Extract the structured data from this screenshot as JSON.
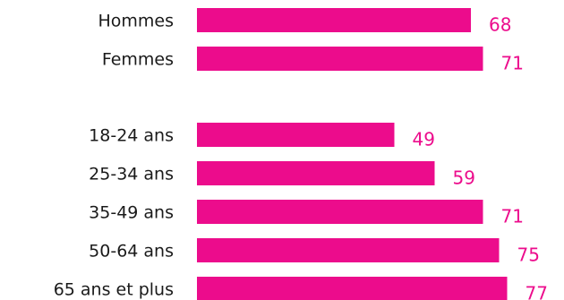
{
  "chart_data": {
    "type": "bar",
    "orientation": "horizontal",
    "groups": [
      {
        "categories": [
          "Hommes",
          "Femmes"
        ],
        "values": [
          68,
          71
        ]
      },
      {
        "categories": [
          "18-24 ans",
          "25-34 ans",
          "35-49 ans",
          "50-64 ans",
          "65 ans et plus"
        ],
        "values": [
          49,
          59,
          71,
          75,
          77
        ]
      }
    ],
    "title": "",
    "xlabel": "",
    "ylabel": "",
    "xlim": [
      0,
      100
    ],
    "grid": false,
    "legend": "none"
  },
  "colors": {
    "bar": "#ec0c8c",
    "value_label": "#ec0c8c",
    "category_label": "#1a1a1a"
  }
}
